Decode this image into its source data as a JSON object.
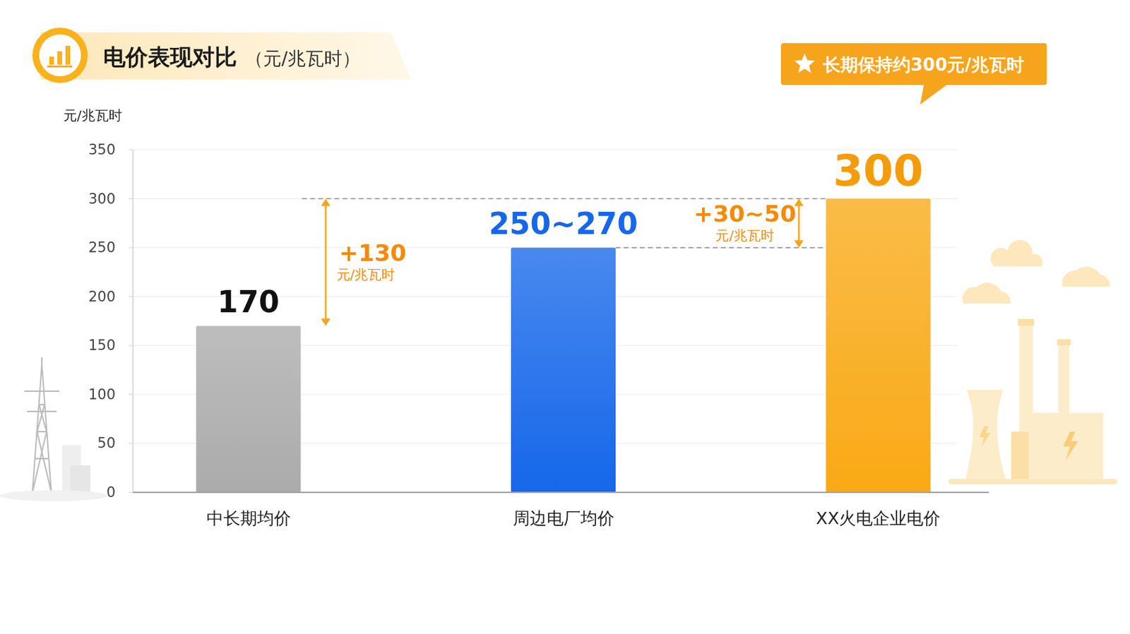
{
  "chart_data": {
    "type": "bar",
    "title": "电价表现对比",
    "subtitle": "（元/兆瓦时）",
    "callout": "长期保持约300元/兆瓦时",
    "y_label": "元/兆瓦时",
    "categories": [
      "中长期均价",
      "周边电厂均价",
      "XX火电企业电价"
    ],
    "values": [
      170,
      250,
      300
    ],
    "value_labels": [
      "170",
      "250~270",
      "300"
    ],
    "colors": [
      "#ababab",
      "#1667ea",
      "#f9a915"
    ],
    "annotations": [
      {
        "text": "+130",
        "unit": "元/兆瓦时"
      },
      {
        "text": "+30~50",
        "unit": "元/兆瓦时"
      }
    ],
    "ylim": [
      0,
      350
    ],
    "yticks": [
      0,
      50,
      100,
      150,
      200,
      250,
      300,
      350
    ],
    "grid": true,
    "data_labels": true
  }
}
